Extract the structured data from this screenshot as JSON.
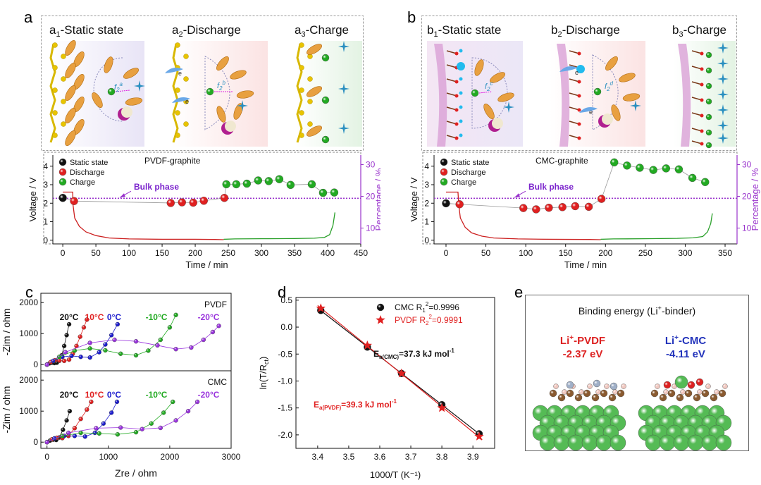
{
  "panels": {
    "a": {
      "letter": "a",
      "subtitles": [
        {
          "prefix": "a",
          "sub": "1",
          "text": "-Static state"
        },
        {
          "prefix": "a",
          "sub": "2",
          "text": "-Discharge"
        },
        {
          "prefix": "a",
          "sub": "3",
          "text": "-Charge"
        }
      ],
      "labels": {
        "f2a": "f",
        "f2a_sub": "2",
        "f2a_sup": "a",
        "f2b": "f",
        "f2b_sub": "2",
        "f2b_sup": "b",
        "e1": "e",
        "e2": "e"
      }
    },
    "b": {
      "letter": "b",
      "subtitles": [
        {
          "prefix": "b",
          "sub": "1",
          "text": "-Static state"
        },
        {
          "prefix": "b",
          "sub": "2",
          "text": "-Discharge"
        },
        {
          "prefix": "b",
          "sub": "3",
          "text": "-Charge"
        }
      ],
      "labels": {
        "f2c": "f",
        "f2c_sub": "2",
        "f2c_sup": "c",
        "f2d": "f",
        "f2d_sub": "2",
        "f2d_sup": "d",
        "e1": "e",
        "e2": "e"
      }
    },
    "c": {
      "letter": "c"
    },
    "d": {
      "letter": "d"
    },
    "e": {
      "letter": "e"
    }
  },
  "chart_data": [
    {
      "id": "a",
      "type": "scatter",
      "title": "PVDF-graphite",
      "xlabel": "Time / min",
      "ylabel_left": "Voltage / V",
      "ylabel_right": "Percentage / %",
      "xlim": [
        -15,
        450
      ],
      "ylim_left": [
        -0.2,
        4.6
      ],
      "ylim_right": [
        5,
        33
      ],
      "xticks": [
        0,
        50,
        100,
        150,
        200,
        250,
        300,
        350,
        400,
        450
      ],
      "yticks_left": [
        0,
        1,
        2,
        3,
        4
      ],
      "yticks_right": [
        10,
        20,
        30
      ],
      "bulk_phase_label": "Bulk phase",
      "bulk_phase_percent": 19.4,
      "legend": [
        "Static state",
        "Discharge",
        "Charge"
      ],
      "series": [
        {
          "name": "Static state",
          "color": "#111111",
          "x": [
            0
          ],
          "y": [
            19.5
          ]
        },
        {
          "name": "Discharge",
          "color": "#e02020",
          "x": [
            17,
            163,
            180,
            197,
            213,
            244
          ],
          "y": [
            18.5,
            17.9,
            18.1,
            18.0,
            18.6,
            19.5
          ]
        },
        {
          "name": "Charge",
          "color": "#22aa22",
          "x": [
            247,
            262,
            278,
            295,
            311,
            327,
            344,
            376,
            393,
            410
          ],
          "y": [
            23.8,
            23.8,
            24.0,
            25.0,
            24.8,
            25.4,
            23.6,
            23.8,
            21.1,
            21.2
          ]
        }
      ],
      "voltage_discharge": {
        "color": "#cc2020",
        "t": [
          0,
          15,
          15.5,
          18,
          25,
          35,
          50,
          70,
          100,
          150,
          200,
          230,
          243
        ],
        "v": [
          2.6,
          2.6,
          1.9,
          1.2,
          0.75,
          0.45,
          0.25,
          0.12,
          0.07,
          0.05,
          0.05,
          0.04,
          0.03
        ]
      },
      "voltage_charge": {
        "color": "#2aa02a",
        "t": [
          243,
          260,
          300,
          350,
          380,
          395,
          403,
          408,
          411
        ],
        "v": [
          0.05,
          0.07,
          0.08,
          0.09,
          0.11,
          0.15,
          0.3,
          0.8,
          1.5
        ]
      }
    },
    {
      "id": "b",
      "type": "scatter",
      "title": "CMC-graphite",
      "xlabel": "Time / min",
      "ylabel_left": "Voltage / V",
      "ylabel_right": "Percentage / %",
      "xlim": [
        -15,
        365
      ],
      "ylim_left": [
        -0.2,
        4.6
      ],
      "ylim_right": [
        5,
        33
      ],
      "xticks": [
        0,
        50,
        100,
        150,
        200,
        250,
        300,
        350
      ],
      "yticks_left": [
        0,
        1,
        2,
        3,
        4
      ],
      "yticks_right": [
        10,
        20,
        30
      ],
      "bulk_phase_label": "Bulk phase",
      "bulk_phase_percent": 19.4,
      "legend": [
        "Static state",
        "Discharge",
        "Charge"
      ],
      "series": [
        {
          "name": "Static state",
          "color": "#111111",
          "x": [
            0
          ],
          "y": [
            17.8
          ]
        },
        {
          "name": "Discharge",
          "color": "#e02020",
          "x": [
            17,
            97,
            113,
            129,
            146,
            162,
            179,
            195
          ],
          "y": [
            17.5,
            16.3,
            15.9,
            16.4,
            16.6,
            16.9,
            16.7,
            19.2
          ]
        },
        {
          "name": "Charge",
          "color": "#22aa22",
          "x": [
            211,
            227,
            243,
            260,
            276,
            292,
            309,
            325
          ],
          "y": [
            30.7,
            29.7,
            29.0,
            28.3,
            28.8,
            28.5,
            25.8,
            24.5
          ]
        }
      ],
      "voltage_discharge": {
        "color": "#cc2020",
        "t": [
          0,
          15,
          16,
          18,
          24,
          32,
          45,
          60,
          90,
          130,
          180,
          194
        ],
        "v": [
          2.6,
          2.6,
          1.9,
          1.2,
          0.7,
          0.4,
          0.22,
          0.12,
          0.07,
          0.05,
          0.04,
          0.03
        ]
      },
      "voltage_charge": {
        "color": "#2aa02a",
        "t": [
          194,
          210,
          250,
          290,
          310,
          322,
          328,
          332,
          334
        ],
        "v": [
          0.05,
          0.07,
          0.08,
          0.1,
          0.13,
          0.2,
          0.45,
          0.9,
          1.45
        ]
      }
    },
    {
      "id": "c",
      "type": "scatter",
      "xlabel": "Zre / ohm",
      "ylabel": "-Zim / ohm",
      "xlim": [
        -100,
        3000
      ],
      "ylim": [
        -200,
        2300
      ],
      "xticks": [
        0,
        1000,
        2000,
        3000
      ],
      "yticks": [
        0,
        1000,
        2000
      ],
      "subplots": [
        {
          "label": "PVDF",
          "temps": [
            {
              "label": "20",
              "color": "#111111",
              "x": [
                0,
                40,
                80,
                120,
                160,
                200,
                240,
                280,
                320,
                360
              ],
              "y": [
                0,
                40,
                60,
                50,
                60,
                120,
                300,
                600,
                950,
                1300
              ]
            },
            {
              "label": "10",
              "color": "#e02020",
              "x": [
                0,
                60,
                130,
                200,
                280,
                360,
                420,
                480,
                540,
                600,
                650
              ],
              "y": [
                0,
                80,
                140,
                130,
                120,
                160,
                350,
                600,
                900,
                1200,
                1450
              ]
            },
            {
              "label": "0",
              "color": "#1a1acc",
              "x": [
                0,
                100,
                250,
                400,
                550,
                700,
                850,
                950,
                1050,
                1150
              ],
              "y": [
                0,
                120,
                250,
                280,
                250,
                230,
                400,
                650,
                950,
                1300
              ]
            },
            {
              "label": "-10",
              "color": "#22aa22",
              "x": [
                0,
                200,
                450,
                700,
                950,
                1200,
                1450,
                1650,
                1850,
                2000,
                2100
              ],
              "y": [
                0,
                250,
                450,
                520,
                460,
                350,
                300,
                450,
                800,
                1200,
                1600
              ]
            },
            {
              "label": "-20",
              "color": "#9933dd",
              "x": [
                0,
                300,
                700,
                1100,
                1450,
                1800,
                2100,
                2350,
                2550,
                2700,
                2800
              ],
              "y": [
                0,
                400,
                700,
                800,
                750,
                620,
                500,
                550,
                800,
                1050,
                1250
              ]
            }
          ]
        },
        {
          "label": "CMC",
          "temps": [
            {
              "label": "20",
              "color": "#111111",
              "x": [
                0,
                50,
                100,
                150,
                200,
                260,
                320,
                370
              ],
              "y": [
                0,
                50,
                80,
                70,
                150,
                400,
                700,
                1000
              ]
            },
            {
              "label": "10",
              "color": "#e02020",
              "x": [
                0,
                80,
                160,
                250,
                350,
                450,
                550,
                650,
                720
              ],
              "y": [
                0,
                90,
                140,
                130,
                200,
                450,
                750,
                1050,
                1300
              ]
            },
            {
              "label": "0",
              "color": "#1a1acc",
              "x": [
                0,
                120,
                280,
                450,
                620,
                780,
                920,
                1050,
                1140
              ],
              "y": [
                0,
                120,
                200,
                200,
                180,
                300,
                600,
                950,
                1300
              ]
            },
            {
              "label": "-10",
              "color": "#22aa22",
              "x": [
                0,
                250,
                550,
                850,
                1150,
                1450,
                1700,
                1900,
                2050
              ],
              "y": [
                0,
                200,
                300,
                280,
                250,
                320,
                600,
                950,
                1300
              ]
            },
            {
              "label": "-20",
              "color": "#9933dd",
              "x": [
                0,
                350,
                800,
                1200,
                1550,
                1850,
                2100,
                2300,
                2450
              ],
              "y": [
                0,
                300,
                450,
                470,
                420,
                460,
                700,
                1000,
                1300
              ]
            }
          ]
        }
      ]
    },
    {
      "id": "d",
      "type": "scatter",
      "xlabel": "1000/T (K⁻¹)",
      "ylabel": "ln(T/R",
      "ylabel_sub": "ct",
      "xlim": [
        3.33,
        3.97
      ],
      "ylim": [
        -2.25,
        0.55
      ],
      "xticks": [
        3.4,
        3.5,
        3.6,
        3.7,
        3.8,
        3.9
      ],
      "yticks": [
        0.5,
        0.0,
        -0.5,
        -1.0,
        -1.5,
        -2.0
      ],
      "series": [
        {
          "name": "CMC",
          "r2_label": "R",
          "r2_sub": "1",
          "r2_value": "=0.9996",
          "color": "#111111",
          "marker": "circle",
          "x": [
            3.41,
            3.56,
            3.67,
            3.8,
            3.92
          ],
          "y": [
            0.31,
            -0.37,
            -0.86,
            -1.44,
            -1.98
          ]
        },
        {
          "name": "PVDF",
          "r2_label": "R",
          "r2_sub": "2",
          "r2_value": "=0.9991",
          "color": "#e02020",
          "marker": "star",
          "x": [
            3.41,
            3.56,
            3.67,
            3.8,
            3.92
          ],
          "y": [
            0.35,
            -0.34,
            -0.86,
            -1.5,
            -2.03
          ]
        }
      ],
      "annotations": [
        {
          "text": "E",
          "sub": "a(CMC)",
          "rest": "=37.3 kJ mol",
          "sup": "-1",
          "color": "#111111"
        },
        {
          "text": "E",
          "sub": "a(PVDF)",
          "rest": "=39.3 kJ mol",
          "sup": "-1",
          "color": "#e02020"
        }
      ]
    }
  ],
  "panel_e": {
    "title": "Binding energy (Li",
    "title_sup": "+",
    "title_rest": "-binder)",
    "left_label": "Li",
    "left_sup": "+",
    "left_rest": "-PVDF",
    "left_value": "-2.37 eV",
    "left_color": "#dd2222",
    "right_label": "Li",
    "right_sup": "+",
    "right_rest": "-CMC",
    "right_value": "-4.11 eV",
    "right_color": "#2233bb"
  }
}
